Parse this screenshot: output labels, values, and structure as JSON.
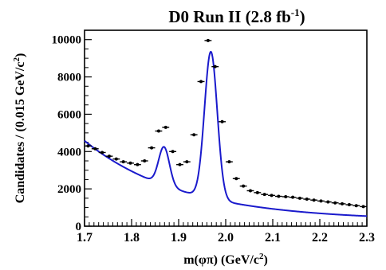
{
  "chart_data": {
    "type": "line",
    "title": "D0 Run II (2.8 fb",
    "title_sup": "-1",
    "title_close": ")",
    "xlabel": "m(φπ) (GeV/c",
    "xlabel_sup": "2",
    "xlabel_close": ")",
    "ylabel": "Candidates / (0.015 GeV/c",
    "ylabel_sup": "2",
    "ylabel_close": ")",
    "xlim": [
      1.7,
      2.3
    ],
    "ylim": [
      0,
      10500
    ],
    "xticks": [
      1.7,
      1.8,
      1.9,
      2.0,
      2.1,
      2.2,
      2.3
    ],
    "xtick_labels": [
      "1.7",
      "1.8",
      "1.9",
      "2.0",
      "2.1",
      "2.2",
      "2.3"
    ],
    "yticks": [
      0,
      2000,
      4000,
      6000,
      8000,
      10000
    ],
    "ytick_labels": [
      "0",
      "2000",
      "4000",
      "6000",
      "8000",
      "10000"
    ],
    "grid": false,
    "colors": {
      "fit": "#1a1acc",
      "points": "#000000"
    },
    "series": [
      {
        "kind": "data-points",
        "x_bin_half_width": 0.0075,
        "x": [
          1.7075,
          1.7225,
          1.7375,
          1.7525,
          1.7675,
          1.7825,
          1.7975,
          1.8125,
          1.8275,
          1.8425,
          1.8575,
          1.8725,
          1.8875,
          1.9025,
          1.9175,
          1.9325,
          1.9475,
          1.9625,
          1.9775,
          1.9925,
          2.0075,
          2.0225,
          2.0375,
          2.0525,
          2.0675,
          2.0825,
          2.0975,
          2.1125,
          2.1275,
          2.1425,
          2.1575,
          2.1725,
          2.1875,
          2.2025,
          2.2175,
          2.2325,
          2.2475,
          2.2625,
          2.2775,
          2.2925
        ],
        "y": [
          4300,
          4150,
          3950,
          3750,
          3600,
          3450,
          3380,
          3300,
          3500,
          4200,
          5100,
          5300,
          4000,
          3300,
          3450,
          4900,
          7750,
          9950,
          8550,
          5600,
          3450,
          2550,
          2150,
          1900,
          1800,
          1700,
          1650,
          1600,
          1580,
          1550,
          1500,
          1450,
          1400,
          1350,
          1300,
          1250,
          1200,
          1150,
          1100,
          1050
        ]
      },
      {
        "kind": "fit-curve",
        "background": {
          "A": 4280,
          "k": 4.8,
          "x0": 1.7,
          "floor": 300
        },
        "peaks": [
          {
            "mean": 1.869,
            "sigma": 0.0115,
            "amplitude": 2050
          },
          {
            "mean": 1.9685,
            "sigma": 0.0135,
            "amplitude": 7870
          }
        ]
      }
    ]
  }
}
